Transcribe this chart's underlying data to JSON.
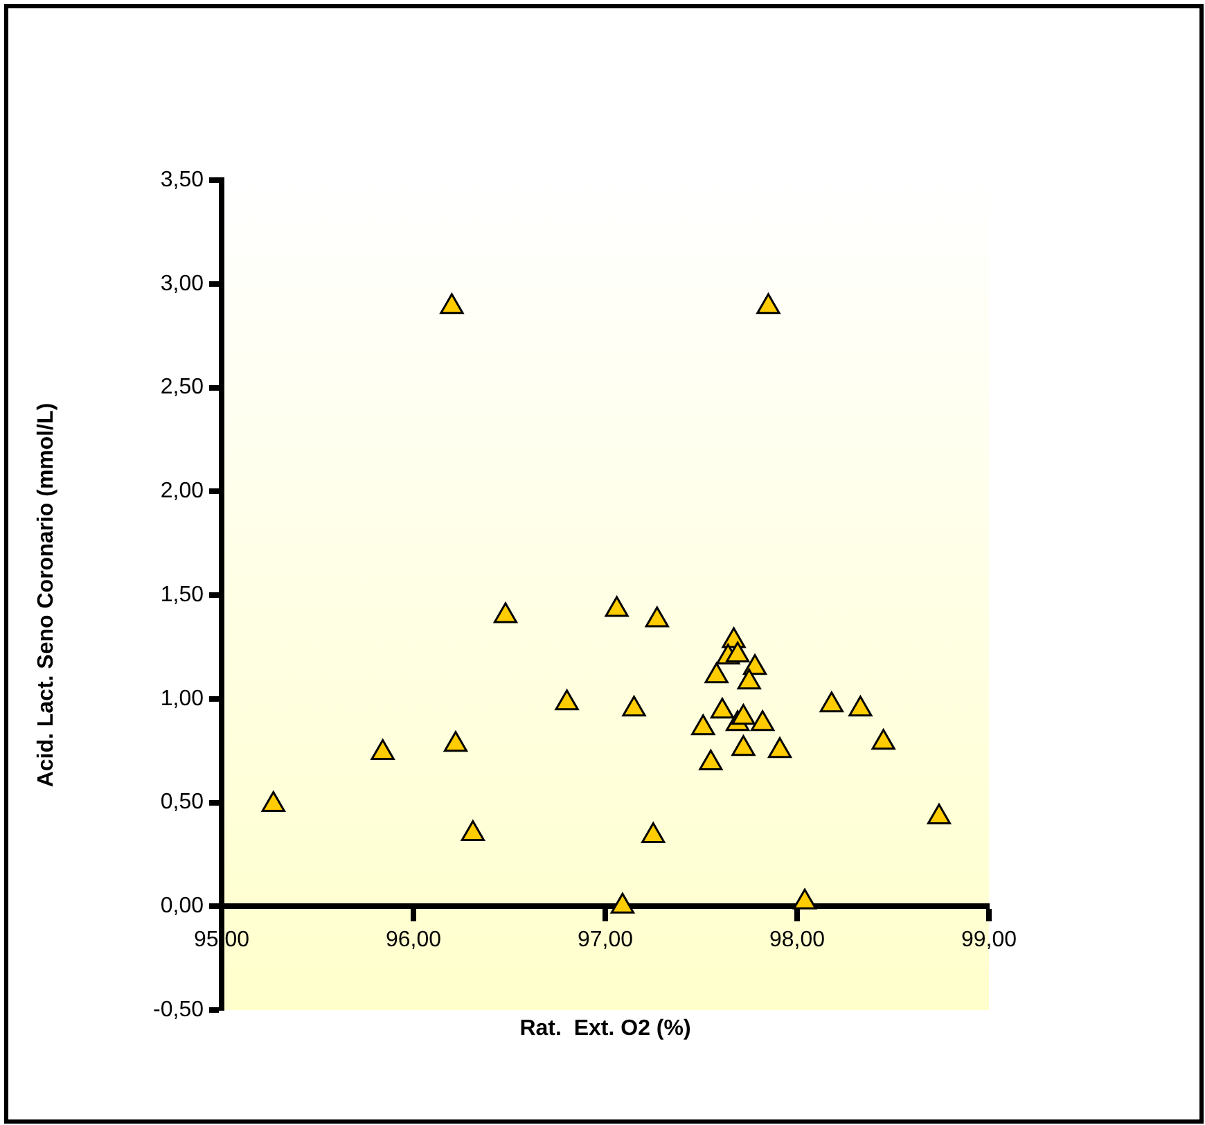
{
  "chart_data": {
    "type": "scatter",
    "xlabel": "Rat.  Ext. O2 (%)",
    "ylabel": "Acid. Lact. Seno Coronario (mmol/L)",
    "xlim": [
      95,
      99
    ],
    "xticks": [
      {
        "value": 95,
        "label": "95,00"
      },
      {
        "value": 96,
        "label": "96,00"
      },
      {
        "value": 97,
        "label": "97,00"
      },
      {
        "value": 98,
        "label": "98,00"
      },
      {
        "value": 99,
        "label": "99,00"
      }
    ],
    "ylim": [
      -0.5,
      3.5
    ],
    "yticks": [
      {
        "value": -0.5,
        "label": "-0,50"
      },
      {
        "value": 0,
        "label": "0,00"
      },
      {
        "value": 0.5,
        "label": "0,50"
      },
      {
        "value": 1,
        "label": "1,00"
      },
      {
        "value": 1.5,
        "label": "1,50"
      },
      {
        "value": 2,
        "label": "2,00"
      },
      {
        "value": 2.5,
        "label": "2,50"
      },
      {
        "value": 3,
        "label": "3,00"
      },
      {
        "value": 3.5,
        "label": "3,50"
      }
    ],
    "marker": "triangle",
    "grid": false,
    "legend": false,
    "series": [
      {
        "color": "#ffcc00",
        "x": [
          95.27,
          95.84,
          96.22,
          96.31,
          96.48,
          96.2,
          96.8,
          97.06,
          97.15,
          97.27,
          97.25,
          97.09,
          97.85,
          97.51,
          97.55,
          97.58,
          97.61,
          97.67,
          97.64,
          97.69,
          97.78,
          97.75,
          97.69,
          97.72,
          97.82,
          97.72,
          97.91,
          98.18,
          98.33,
          98.45,
          98.74,
          98.04
        ],
        "values": [
          0.49,
          0.74,
          0.78,
          0.35,
          1.4,
          2.89,
          0.98,
          1.43,
          0.95,
          1.38,
          0.34,
          0,
          2.89,
          0.86,
          0.69,
          1.11,
          0.94,
          1.28,
          1.2,
          1.21,
          1.15,
          1.08,
          0.88,
          0.91,
          0.88,
          0.76,
          0.75,
          0.97,
          0.95,
          0.79,
          0.43,
          0.02
        ]
      }
    ]
  }
}
